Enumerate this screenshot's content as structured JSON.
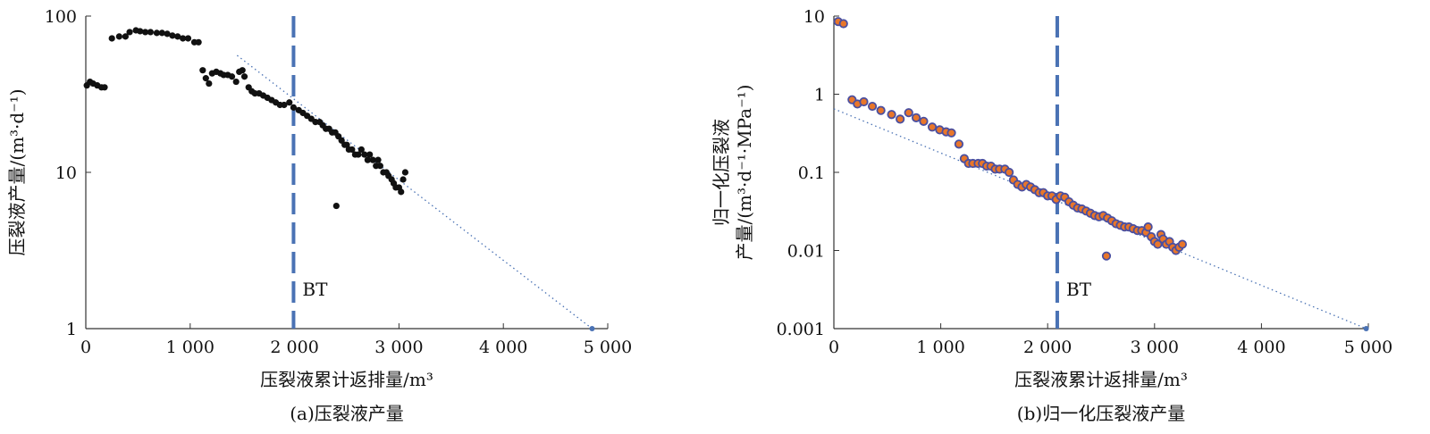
{
  "chart_data": [
    {
      "type": "scatter",
      "caption": "(a)压裂液产量",
      "xlabel": "压裂液累计返排量/m³",
      "ylabel": "压裂液产量/(m³·d⁻¹)",
      "y_scale": "log",
      "xlim": [
        0,
        5000
      ],
      "ylim": [
        1,
        100
      ],
      "x_ticks": [
        0,
        1000,
        2000,
        3000,
        4000,
        5000
      ],
      "x_tick_labels": [
        "0",
        "1 000",
        "2 000",
        "3 000",
        "4 000",
        "5 000"
      ],
      "y_ticks": [
        1,
        10,
        100
      ],
      "y_tick_labels": [
        "1",
        "10",
        "100"
      ],
      "marker_color": "#111111",
      "breakthrough": {
        "label": "BT",
        "x": 1990,
        "color": "#4a72b4"
      },
      "trendline": {
        "style": "dotted",
        "color": "#4a72b4",
        "from": [
          1450,
          56
        ],
        "to": [
          4850,
          1
        ]
      },
      "points": [
        [
          10,
          36
        ],
        [
          40,
          38
        ],
        [
          70,
          37
        ],
        [
          110,
          36
        ],
        [
          150,
          35
        ],
        [
          180,
          35
        ],
        [
          250,
          72
        ],
        [
          320,
          74
        ],
        [
          380,
          74
        ],
        [
          420,
          79
        ],
        [
          480,
          81
        ],
        [
          520,
          80
        ],
        [
          570,
          79
        ],
        [
          620,
          79
        ],
        [
          680,
          78
        ],
        [
          730,
          78
        ],
        [
          780,
          77
        ],
        [
          830,
          75
        ],
        [
          880,
          74
        ],
        [
          930,
          72
        ],
        [
          980,
          72
        ],
        [
          1040,
          68
        ],
        [
          1080,
          68
        ],
        [
          1120,
          45
        ],
        [
          1150,
          40
        ],
        [
          1180,
          37
        ],
        [
          1210,
          43
        ],
        [
          1250,
          44
        ],
        [
          1290,
          43
        ],
        [
          1320,
          42
        ],
        [
          1360,
          42
        ],
        [
          1400,
          41
        ],
        [
          1440,
          38
        ],
        [
          1470,
          44
        ],
        [
          1500,
          45
        ],
        [
          1520,
          41
        ],
        [
          1560,
          35
        ],
        [
          1590,
          33
        ],
        [
          1620,
          32
        ],
        [
          1660,
          32
        ],
        [
          1700,
          31
        ],
        [
          1740,
          30
        ],
        [
          1780,
          29
        ],
        [
          1820,
          28
        ],
        [
          1860,
          27
        ],
        [
          1900,
          27
        ],
        [
          1950,
          28
        ],
        [
          1990,
          26
        ],
        [
          2040,
          25
        ],
        [
          2080,
          24
        ],
        [
          2120,
          23
        ],
        [
          2160,
          22
        ],
        [
          2200,
          21
        ],
        [
          2240,
          21
        ],
        [
          2270,
          20
        ],
        [
          2300,
          19
        ],
        [
          2330,
          19
        ],
        [
          2360,
          18
        ],
        [
          2390,
          18
        ],
        [
          2420,
          17
        ],
        [
          2400,
          6.1
        ],
        [
          2450,
          16
        ],
        [
          2480,
          15
        ],
        [
          2500,
          15
        ],
        [
          2520,
          14
        ],
        [
          2550,
          14
        ],
        [
          2580,
          13
        ],
        [
          2610,
          13
        ],
        [
          2640,
          14
        ],
        [
          2670,
          13
        ],
        [
          2700,
          12
        ],
        [
          2720,
          13
        ],
        [
          2750,
          12
        ],
        [
          2780,
          11
        ],
        [
          2800,
          12
        ],
        [
          2820,
          11
        ],
        [
          2850,
          10
        ],
        [
          2880,
          10
        ],
        [
          2900,
          9.5
        ],
        [
          2930,
          9
        ],
        [
          2950,
          8.5
        ],
        [
          2970,
          8
        ],
        [
          3000,
          8
        ],
        [
          3020,
          7.5
        ],
        [
          3040,
          9
        ],
        [
          3060,
          10
        ]
      ]
    },
    {
      "type": "scatter",
      "caption": "(b)归一化压裂液产量",
      "xlabel": "压裂液累计返排量/m³",
      "ylabel_line1": "归一化压裂液",
      "ylabel_line2": "产量/(m³·d⁻¹·MPa⁻¹)",
      "y_scale": "log",
      "xlim": [
        0,
        5000
      ],
      "ylim": [
        0.001,
        10
      ],
      "x_ticks": [
        0,
        1000,
        2000,
        3000,
        4000,
        5000
      ],
      "x_tick_labels": [
        "0",
        "1 000",
        "2 000",
        "3 000",
        "4 000",
        "5 000"
      ],
      "y_ticks": [
        0.001,
        0.01,
        0.1,
        1,
        10
      ],
      "y_tick_labels": [
        "0.001",
        "0.01",
        "0.1",
        "1",
        "10"
      ],
      "marker_fill": "#e8762a",
      "marker_edge": "#4a4fa0",
      "breakthrough": {
        "label": "BT",
        "x": 2090,
        "color": "#4a72b4"
      },
      "trendline": {
        "style": "dotted",
        "color": "#4a72b4",
        "from": [
          0,
          0.65
        ],
        "to": [
          4980,
          0.001
        ]
      },
      "points": [
        [
          40,
          8.5
        ],
        [
          90,
          8
        ],
        [
          170,
          0.85
        ],
        [
          220,
          0.75
        ],
        [
          280,
          0.8
        ],
        [
          360,
          0.7
        ],
        [
          440,
          0.62
        ],
        [
          540,
          0.55
        ],
        [
          620,
          0.48
        ],
        [
          700,
          0.58
        ],
        [
          770,
          0.5
        ],
        [
          840,
          0.45
        ],
        [
          920,
          0.38
        ],
        [
          990,
          0.35
        ],
        [
          1050,
          0.33
        ],
        [
          1100,
          0.32
        ],
        [
          1170,
          0.23
        ],
        [
          1220,
          0.15
        ],
        [
          1260,
          0.13
        ],
        [
          1300,
          0.13
        ],
        [
          1350,
          0.13
        ],
        [
          1390,
          0.13
        ],
        [
          1430,
          0.12
        ],
        [
          1470,
          0.12
        ],
        [
          1510,
          0.11
        ],
        [
          1550,
          0.11
        ],
        [
          1600,
          0.11
        ],
        [
          1640,
          0.1
        ],
        [
          1680,
          0.08
        ],
        [
          1720,
          0.07
        ],
        [
          1760,
          0.065
        ],
        [
          1800,
          0.07
        ],
        [
          1840,
          0.065
        ],
        [
          1880,
          0.06
        ],
        [
          1920,
          0.055
        ],
        [
          1960,
          0.055
        ],
        [
          2000,
          0.05
        ],
        [
          2040,
          0.05
        ],
        [
          2080,
          0.045
        ],
        [
          2120,
          0.05
        ],
        [
          2160,
          0.048
        ],
        [
          2200,
          0.042
        ],
        [
          2240,
          0.038
        ],
        [
          2280,
          0.035
        ],
        [
          2320,
          0.034
        ],
        [
          2360,
          0.032
        ],
        [
          2400,
          0.03
        ],
        [
          2440,
          0.028
        ],
        [
          2480,
          0.027
        ],
        [
          2520,
          0.028
        ],
        [
          2560,
          0.026
        ],
        [
          2550,
          0.0085
        ],
        [
          2600,
          0.024
        ],
        [
          2640,
          0.022
        ],
        [
          2680,
          0.021
        ],
        [
          2720,
          0.02
        ],
        [
          2760,
          0.02
        ],
        [
          2800,
          0.019
        ],
        [
          2840,
          0.018
        ],
        [
          2880,
          0.018
        ],
        [
          2920,
          0.017
        ],
        [
          2940,
          0.02
        ],
        [
          2970,
          0.015
        ],
        [
          3000,
          0.013
        ],
        [
          3030,
          0.012
        ],
        [
          3060,
          0.016
        ],
        [
          3080,
          0.014
        ],
        [
          3110,
          0.012
        ],
        [
          3140,
          0.013
        ],
        [
          3170,
          0.011
        ],
        [
          3200,
          0.01
        ],
        [
          3230,
          0.011
        ],
        [
          3260,
          0.012
        ]
      ]
    }
  ]
}
